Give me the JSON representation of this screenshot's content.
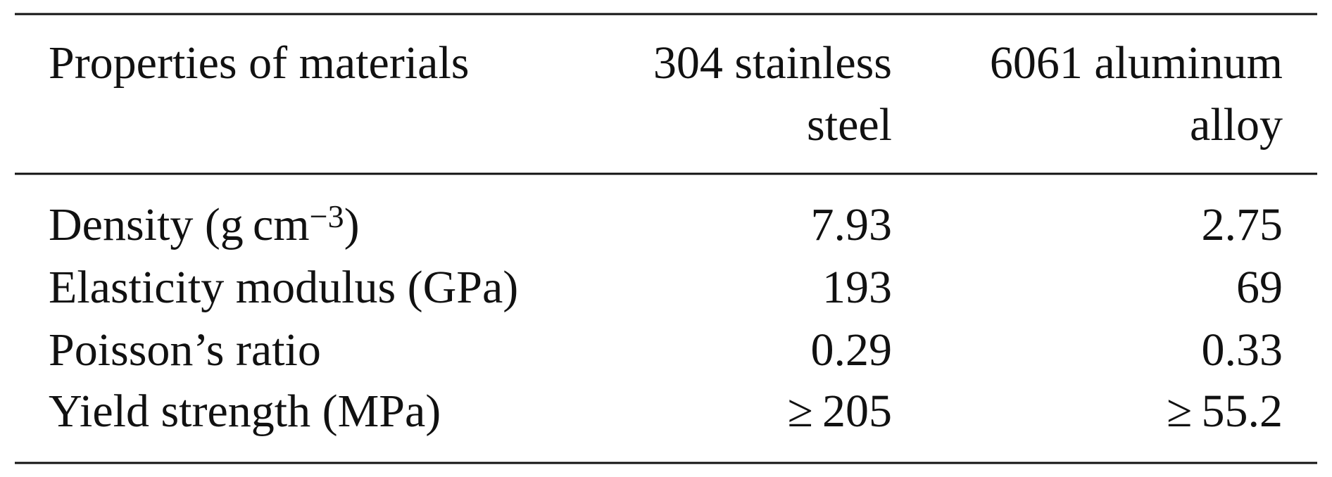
{
  "table": {
    "header": [
      [
        "Properties of materials"
      ],
      [
        "304 stainless",
        "steel"
      ],
      [
        "6061 aluminum",
        "alloy"
      ]
    ],
    "rows": [
      [
        [
          "Density (g cm",
          "−3",
          ")"
        ],
        "7.93",
        "2.75"
      ],
      [
        "Elasticity modulus (GPa)",
        "193",
        "69"
      ],
      [
        "Poisson’s ratio",
        "0.29",
        "0.33"
      ],
      [
        "Yield strength (MPa)",
        "≥ 205",
        "≥ 55.2"
      ]
    ]
  }
}
